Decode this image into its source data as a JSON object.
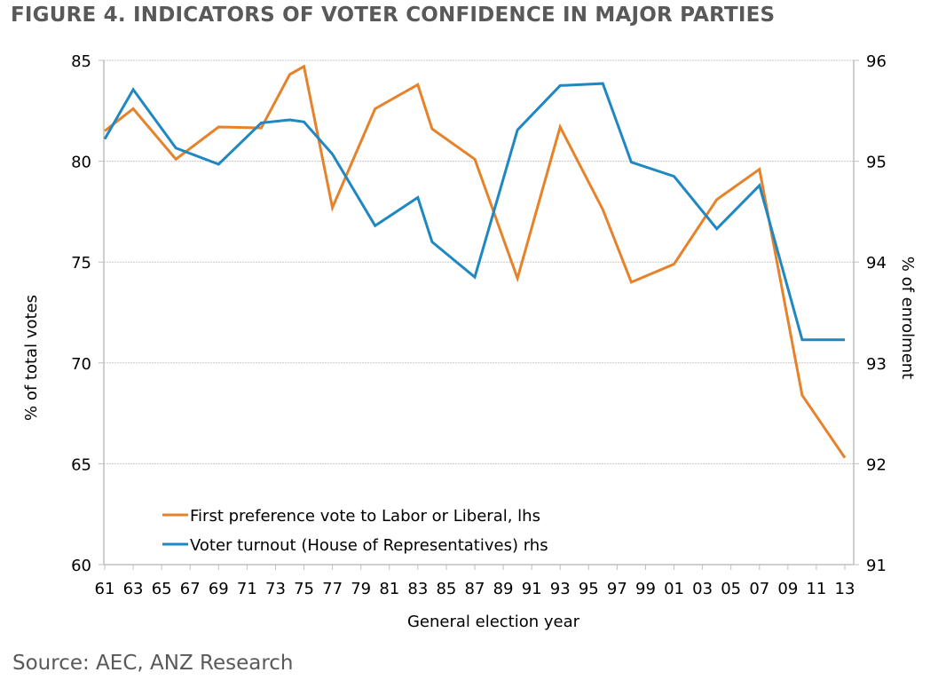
{
  "title": "FIGURE 4. INDICATORS OF VOTER CONFIDENCE IN MAJOR PARTIES",
  "source": "Source: AEC, ANZ Research",
  "colors": {
    "orange": "#E6822A",
    "blue": "#1F87C2",
    "title": "#595959",
    "grid": "#bfbfbf"
  },
  "chart_data": {
    "type": "line",
    "title": "FIGURE 4. INDICATORS OF VOTER CONFIDENCE IN MAJOR PARTIES",
    "xlabel": "General election year",
    "ylabel": "% of total votes",
    "y2label": "% of enrolment",
    "xlim": [
      1961,
      2013
    ],
    "ylim": [
      60,
      85
    ],
    "y2lim": [
      91,
      96
    ],
    "x_ticks": [
      "61",
      "63",
      "65",
      "67",
      "69",
      "71",
      "73",
      "75",
      "77",
      "79",
      "81",
      "83",
      "85",
      "87",
      "89",
      "91",
      "93",
      "95",
      "97",
      "99",
      "01",
      "03",
      "05",
      "07",
      "09",
      "11",
      "13"
    ],
    "y_ticks": [
      "60",
      "65",
      "70",
      "75",
      "80",
      "85"
    ],
    "y2_ticks": [
      "91",
      "92",
      "93",
      "94",
      "95",
      "96"
    ],
    "grid": true,
    "legend_position": "bottom-left",
    "x": [
      1961,
      1963,
      1966,
      1969,
      1972,
      1974,
      1975,
      1977,
      1980,
      1983,
      1984,
      1987,
      1990,
      1993,
      1996,
      1998,
      2001,
      2004,
      2007,
      2010,
      2013
    ],
    "series": [
      {
        "name": "First preference vote to Labor or Liberal, lhs",
        "axis": "left",
        "color": "#E6822A",
        "values": [
          81.5,
          82.6,
          80.1,
          81.7,
          81.65,
          84.3,
          84.7,
          77.7,
          82.6,
          83.8,
          81.6,
          80.1,
          74.2,
          81.7,
          77.6,
          74.0,
          74.9,
          78.1,
          79.6,
          68.4,
          65.3
        ]
      },
      {
        "name": "Voter turnout (House of Representatives) rhs",
        "axis": "right",
        "color": "#1F87C2",
        "values": [
          95.22,
          95.71,
          95.13,
          94.97,
          95.38,
          95.41,
          95.39,
          95.07,
          94.36,
          94.64,
          94.2,
          93.85,
          95.31,
          95.75,
          95.77,
          94.99,
          94.85,
          94.33,
          94.76,
          93.23,
          93.23
        ]
      }
    ]
  }
}
